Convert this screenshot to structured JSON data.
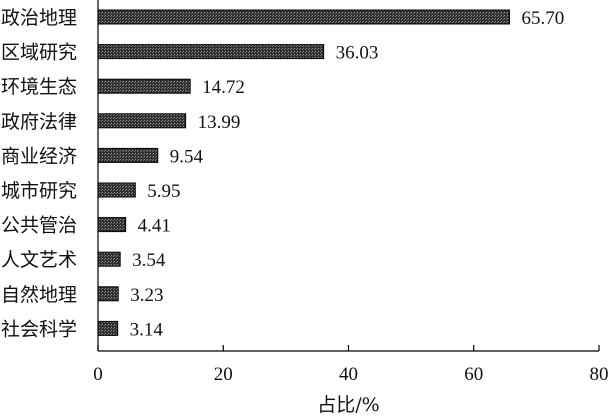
{
  "chart_data": {
    "type": "bar",
    "orientation": "horizontal",
    "categories": [
      "政治地理",
      "区域研究",
      "环境生态",
      "政府法律",
      "商业经济",
      "城市研究",
      "公共管治",
      "人文艺术",
      "自然地理",
      "社会科学"
    ],
    "values": [
      65.7,
      36.03,
      14.72,
      13.99,
      9.54,
      5.95,
      4.41,
      3.54,
      3.23,
      3.14
    ],
    "value_labels": [
      "65.70",
      "36.03",
      "14.72",
      "13.99",
      "9.54",
      "5.95",
      "4.41",
      "3.54",
      "3.23",
      "3.14"
    ],
    "xlabel": "占比/%",
    "xlim": [
      0,
      80
    ],
    "xticks": [
      0,
      20,
      40,
      60,
      80
    ],
    "grid": false,
    "bar_fill": "dark stipple pattern",
    "colors": {
      "bar": "#3a3a3a",
      "axis": "#000000",
      "text": "#111111"
    }
  }
}
